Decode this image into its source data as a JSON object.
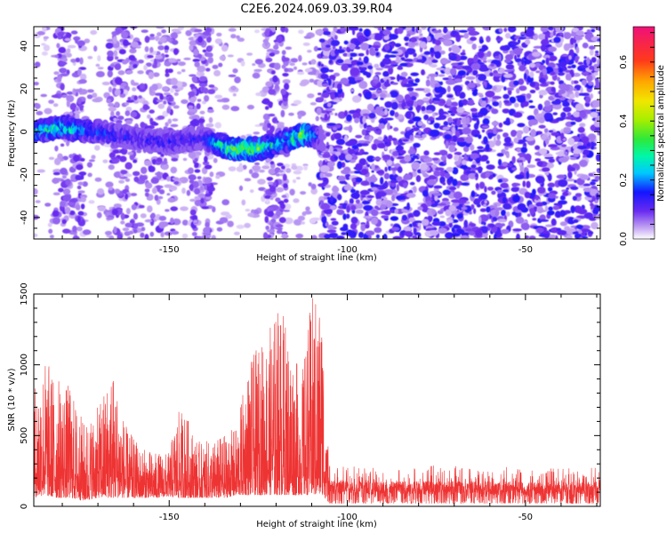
{
  "title": "C2E6.2024.069.03.39.R04",
  "chart_data": [
    {
      "type": "heatmap",
      "xlabel": "Height of straight line (km)",
      "ylabel": "Frequency (Hz)",
      "xlim": [
        -188,
        -29
      ],
      "ylim": [
        -50,
        49
      ],
      "xticks": [
        -150,
        -100,
        -50
      ],
      "yticks": [
        -40,
        -20,
        0,
        20,
        40
      ],
      "colorbar": {
        "label": "Normalized spectral amplitude",
        "range": [
          0,
          0.72
        ],
        "ticks": [
          0.0,
          0.2,
          0.4,
          0.6
        ]
      },
      "ridge": {
        "x": [
          -188,
          -180,
          -170,
          -160,
          -150,
          -140,
          -133,
          -125,
          -118,
          -112,
          -107
        ],
        "freq": [
          0,
          2,
          0,
          -3,
          -5,
          -3,
          -8,
          -8,
          -5,
          -1,
          -3
        ],
        "amplitude": [
          0.3,
          0.3,
          0.2,
          0.15,
          0.15,
          0.15,
          0.4,
          0.4,
          0.25,
          0.4,
          0.1
        ]
      },
      "noise_onset_x": -108
    },
    {
      "type": "line",
      "xlabel": "Height of straight line (km)",
      "ylabel": "SNR (10 * v/v)",
      "xlim": [
        -188,
        -29
      ],
      "ylim": [
        0,
        1500
      ],
      "xticks": [
        -150,
        -100,
        -50
      ],
      "yticks": [
        0,
        500,
        1000,
        1500
      ],
      "series": [
        {
          "color": "#ee3333",
          "envelope_x": [
            -188,
            -185,
            -182,
            -178,
            -174,
            -170,
            -166,
            -162,
            -158,
            -154,
            -150,
            -148,
            -146,
            -142,
            -138,
            -134,
            -131,
            -128,
            -125,
            -122,
            -119,
            -116,
            -113,
            -110,
            -108,
            -107,
            -105,
            -95,
            -85,
            -75,
            -65,
            -55,
            -45,
            -35,
            -29
          ],
          "envelope_peak": [
            880,
            1080,
            930,
            860,
            600,
            700,
            1010,
            560,
            420,
            380,
            380,
            650,
            700,
            460,
            460,
            520,
            560,
            1000,
            1130,
            1250,
            1470,
            1220,
            900,
            1500,
            1500,
            1500,
            290,
            280,
            280,
            290,
            280,
            280,
            270,
            270,
            280
          ],
          "envelope_base": [
            60,
            80,
            60,
            60,
            40,
            60,
            60,
            60,
            60,
            60,
            70,
            60,
            60,
            60,
            60,
            60,
            80,
            80,
            80,
            80,
            80,
            80,
            80,
            80,
            80,
            80,
            20,
            20,
            20,
            20,
            20,
            20,
            20,
            20,
            20
          ]
        }
      ]
    }
  ]
}
